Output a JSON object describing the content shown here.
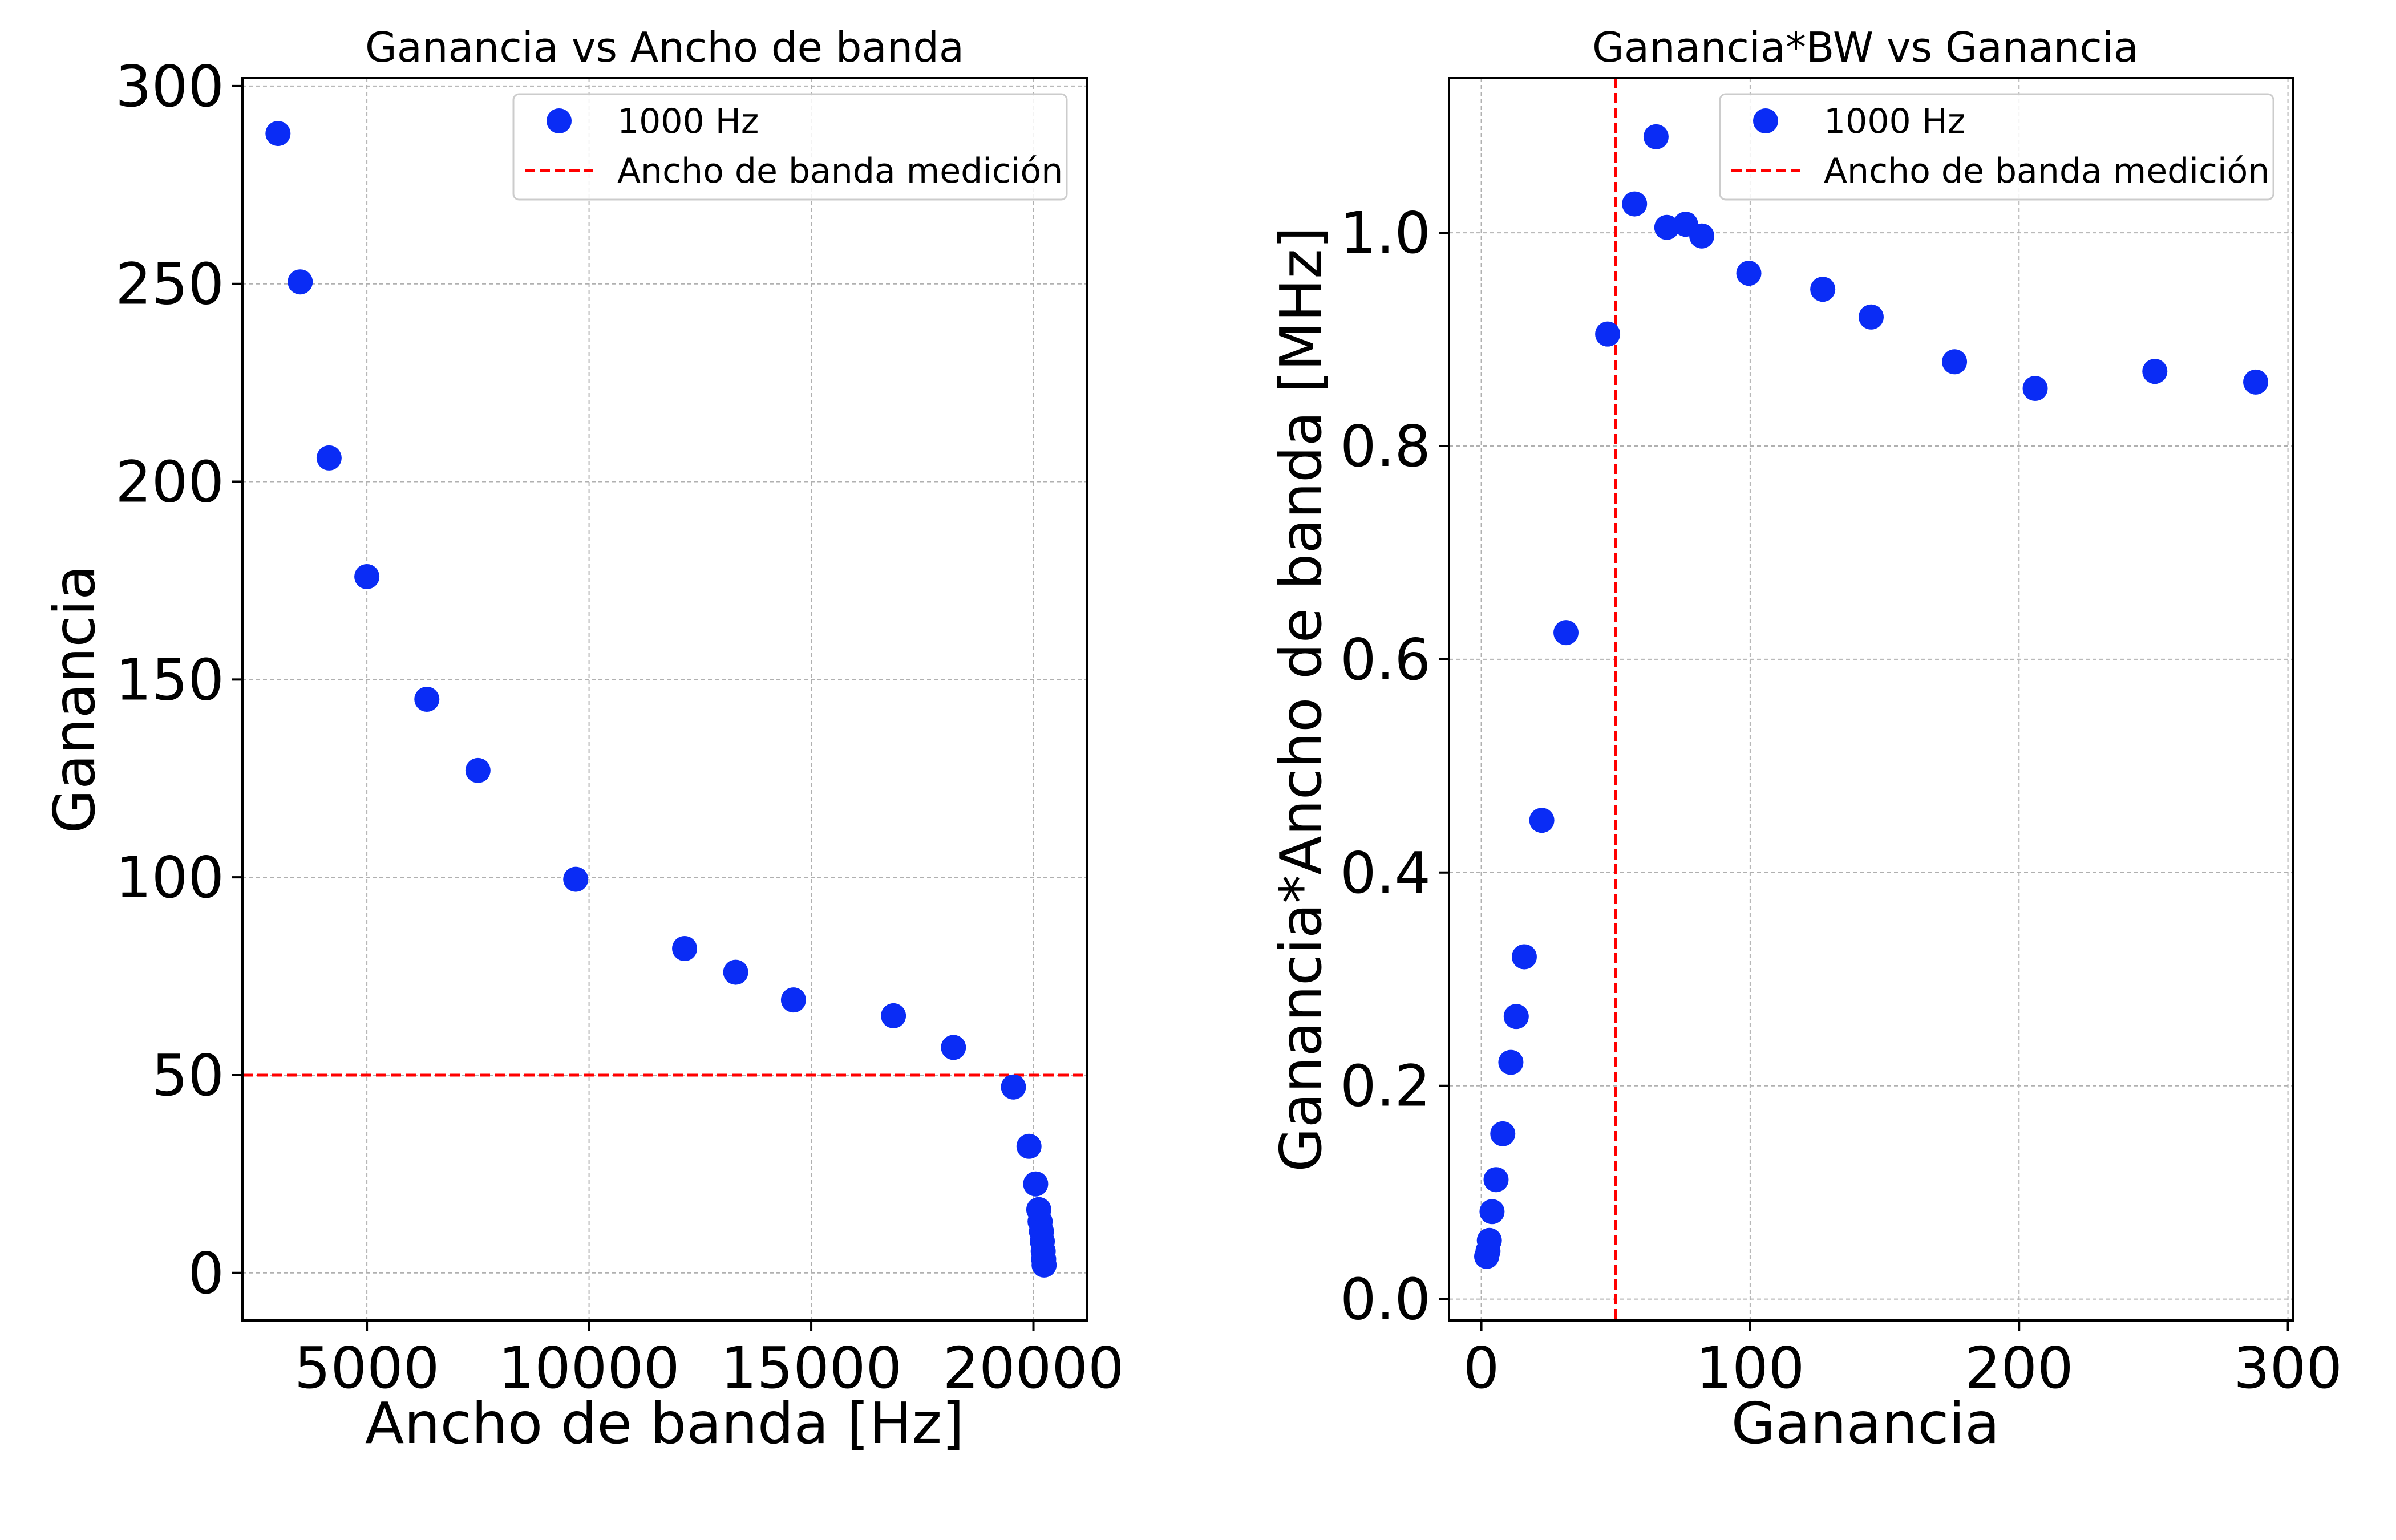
{
  "colors": {
    "points": "#0a2cf5",
    "ref_line": "#ff0000",
    "grid": "#b0b0b0"
  },
  "chart_data": [
    {
      "type": "scatter",
      "title": "Ganancia vs Ancho de banda",
      "xlabel": "Ancho de banda [Hz]",
      "ylabel": "Ganancia",
      "xlim": [
        2200,
        21200
      ],
      "ylim": [
        -12,
        302
      ],
      "xticks": [
        5000,
        10000,
        15000,
        20000
      ],
      "yticks": [
        0,
        50,
        100,
        150,
        200,
        250,
        300
      ],
      "grid": true,
      "legend_position": "top-right",
      "series": [
        {
          "name": "1000 Hz",
          "points": [
            [
              3000,
              288
            ],
            [
              3500,
              250.5
            ],
            [
              4150,
              206
            ],
            [
              5000,
              176
            ],
            [
              6350,
              145
            ],
            [
              7500,
              127
            ],
            [
              9700,
              99.5
            ],
            [
              12150,
              82
            ],
            [
              13300,
              76
            ],
            [
              14600,
              69
            ],
            [
              16850,
              65
            ],
            [
              18200,
              57
            ],
            [
              19550,
              47
            ],
            [
              19900,
              32
            ],
            [
              20050,
              22.5
            ],
            [
              20120,
              16
            ],
            [
              20150,
              13
            ],
            [
              20180,
              10.5
            ],
            [
              20200,
              8
            ],
            [
              20220,
              5.5
            ],
            [
              20230,
              3.5
            ],
            [
              20240,
              2
            ]
          ]
        }
      ],
      "reference_line": {
        "name": "Ancho de banda medición",
        "orientation": "horizontal",
        "value": 50
      }
    },
    {
      "type": "scatter",
      "title": "Ganancia*BW vs Ganancia",
      "xlabel": "Ganancia",
      "ylabel": "Ganancia*Ancho de banda [MHz]",
      "xlim": [
        -12,
        302
      ],
      "ylim": [
        -0.02,
        1.145
      ],
      "xticks": [
        0,
        100,
        200,
        300
      ],
      "yticks": [
        0.0,
        0.2,
        0.4,
        0.6,
        0.8,
        1.0
      ],
      "grid": true,
      "legend_position": "top-right",
      "series": [
        {
          "name": "1000 Hz",
          "points": [
            [
              2,
              0.04
            ],
            [
              2.5,
              0.045
            ],
            [
              3,
              0.055
            ],
            [
              4,
              0.082
            ],
            [
              5.5,
              0.112
            ],
            [
              8,
              0.155
            ],
            [
              11,
              0.222
            ],
            [
              13,
              0.265
            ],
            [
              16,
              0.321
            ],
            [
              22.5,
              0.449
            ],
            [
              31.5,
              0.625
            ],
            [
              47,
              0.905
            ],
            [
              57,
              1.027
            ],
            [
              65,
              1.09
            ],
            [
              69,
              1.005
            ],
            [
              76,
              1.008
            ],
            [
              82,
              0.997
            ],
            [
              99.5,
              0.962
            ],
            [
              127,
              0.947
            ],
            [
              145,
              0.921
            ],
            [
              176,
              0.879
            ],
            [
              206,
              0.854
            ],
            [
              250.5,
              0.87
            ],
            [
              288,
              0.86
            ]
          ]
        }
      ],
      "reference_line": {
        "name": "Ancho de banda medición",
        "orientation": "vertical",
        "value": 50
      }
    }
  ]
}
